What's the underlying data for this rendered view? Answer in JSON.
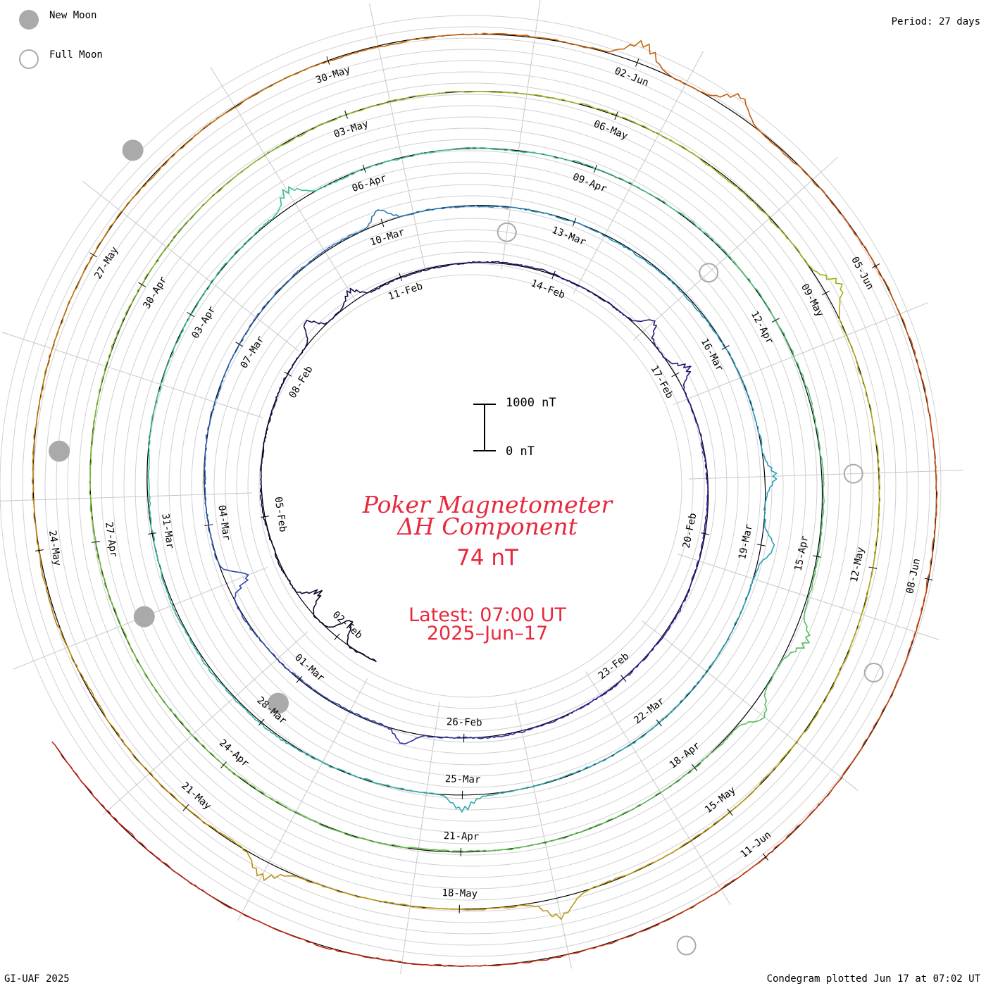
{
  "legend": {
    "new_moon_label": "New Moon",
    "full_moon_label": "Full Moon",
    "new_moon_color": "#aaaaaa",
    "full_moon_color": "#aaaaaa"
  },
  "period_label": "Period: 27 days",
  "credit": "GI-UAF 2025",
  "plotted_note": "Condegram plotted Jun 17 at 07:02 UT",
  "title_line1": "Poker Magnetometer",
  "title_line2": "ΔH Component",
  "baseline_value": "74 nT",
  "latest_line": "Latest: 07:00 UT",
  "date_line": "2025–Jun–17",
  "scale": {
    "top_label": "1000 nT",
    "bottom_label": "0 nT",
    "span_nT": 1000
  },
  "title_color": "#e8283c",
  "chart_data": {
    "type": "line",
    "layout": "condegram spiral",
    "period_days": 27,
    "units": "nT",
    "start_date": "2025-01-31",
    "end_date": "2025-06-17",
    "grid": true,
    "date_labels": [
      {
        "text": "02-Feb",
        "day": 2
      },
      {
        "text": "05-Feb",
        "day": 5
      },
      {
        "text": "08-Feb",
        "day": 8
      },
      {
        "text": "11-Feb",
        "day": 11
      },
      {
        "text": "14-Feb",
        "day": 14
      },
      {
        "text": "17-Feb",
        "day": 17
      },
      {
        "text": "20-Feb",
        "day": 20
      },
      {
        "text": "23-Feb",
        "day": 23
      },
      {
        "text": "26-Feb",
        "day": 26
      },
      {
        "text": "01-Mar",
        "day": 29
      },
      {
        "text": "04-Mar",
        "day": 32
      },
      {
        "text": "07-Mar",
        "day": 35
      },
      {
        "text": "10-Mar",
        "day": 38
      },
      {
        "text": "13-Mar",
        "day": 41
      },
      {
        "text": "16-Mar",
        "day": 44
      },
      {
        "text": "19-Mar",
        "day": 47
      },
      {
        "text": "22-Mar",
        "day": 50
      },
      {
        "text": "25-Mar",
        "day": 53
      },
      {
        "text": "28-Mar",
        "day": 56
      },
      {
        "text": "31-Mar",
        "day": 59
      },
      {
        "text": "03-Apr",
        "day": 62
      },
      {
        "text": "06-Apr",
        "day": 65
      },
      {
        "text": "09-Apr",
        "day": 68
      },
      {
        "text": "12-Apr",
        "day": 71
      },
      {
        "text": "15-Apr",
        "day": 74
      },
      {
        "text": "18-Apr",
        "day": 77
      },
      {
        "text": "21-Apr",
        "day": 80
      },
      {
        "text": "24-Apr",
        "day": 83
      },
      {
        "text": "27-Apr",
        "day": 86
      },
      {
        "text": "30-Apr",
        "day": 89
      },
      {
        "text": "03-May",
        "day": 92
      },
      {
        "text": "06-May",
        "day": 95
      },
      {
        "text": "09-May",
        "day": 98
      },
      {
        "text": "12-May",
        "day": 101
      },
      {
        "text": "15-May",
        "day": 104
      },
      {
        "text": "18-May",
        "day": 107
      },
      {
        "text": "21-May",
        "day": 110
      },
      {
        "text": "24-May",
        "day": 113
      },
      {
        "text": "27-May",
        "day": 116
      },
      {
        "text": "30-May",
        "day": 119
      },
      {
        "text": "02-Jun",
        "day": 122
      },
      {
        "text": "05-Jun",
        "day": 125
      },
      {
        "text": "08-Jun",
        "day": 128
      },
      {
        "text": "11-Jun",
        "day": 131
      }
    ],
    "new_moons": [
      "2025-01-29",
      "2025-02-28",
      "2025-03-29",
      "2025-04-27",
      "2025-05-27"
    ],
    "full_moons": [
      "2025-02-12",
      "2025-03-14",
      "2025-04-13",
      "2025-05-12",
      "2025-06-11"
    ],
    "storm_peaks_nT": [
      {
        "date": "2025-02-01",
        "value": -560
      },
      {
        "date": "2025-02-02",
        "value": -480
      },
      {
        "date": "2025-02-08",
        "value": 430
      },
      {
        "date": "2025-02-09",
        "value": 280
      },
      {
        "date": "2025-02-15",
        "value": 380
      },
      {
        "date": "2025-02-16",
        "value": 380
      },
      {
        "date": "2025-02-26",
        "value": 300
      },
      {
        "date": "2025-03-02",
        "value": -560
      },
      {
        "date": "2025-03-09",
        "value": 320
      },
      {
        "date": "2025-03-17",
        "value": 280
      },
      {
        "date": "2025-03-18",
        "value": 310
      },
      {
        "date": "2025-03-24",
        "value": 350
      },
      {
        "date": "2025-04-04",
        "value": 400
      },
      {
        "date": "2025-04-15",
        "value": 360
      },
      {
        "date": "2025-04-16",
        "value": 370
      },
      {
        "date": "2025-05-08",
        "value": 420
      },
      {
        "date": "2025-05-16",
        "value": 460
      },
      {
        "date": "2025-05-19",
        "value": 420
      },
      {
        "date": "2025-06-01",
        "value": 500
      },
      {
        "date": "2025-06-02",
        "value": 440
      }
    ]
  }
}
